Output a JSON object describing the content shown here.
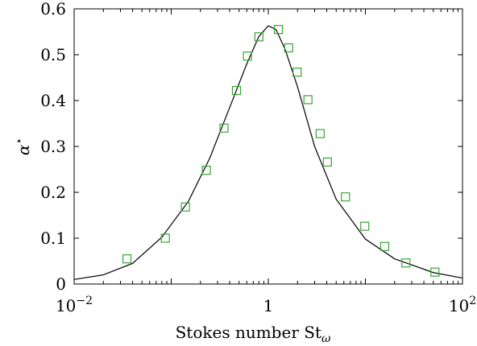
{
  "chart_data": {
    "type": "scatter",
    "xscale": "log",
    "xlim": [
      0.01,
      100
    ],
    "ylim": [
      0,
      0.6
    ],
    "xlabel": "Stokes number St",
    "xlabel_sub": "ω",
    "ylabel": "α",
    "ylabel_sup": "⋆",
    "grid": false,
    "x_ticks": [
      {
        "value": 0.01,
        "base": "10",
        "exp": "−2"
      },
      {
        "value": 1,
        "base": "1",
        "exp": ""
      },
      {
        "value": 100,
        "base": "10",
        "exp": "2"
      }
    ],
    "y_ticks": [
      0,
      0.1,
      0.2,
      0.3,
      0.4,
      0.5,
      0.6
    ],
    "y_tick_labels": [
      "0",
      "0.1",
      "0.2",
      "0.3",
      "0.4",
      "0.5",
      "0.6"
    ],
    "series": [
      {
        "kind": "line",
        "color": "#000000",
        "x": [
          0.01,
          0.02,
          0.04,
          0.08,
          0.15,
          0.25,
          0.4,
          0.6,
          0.8,
          1.0,
          1.2,
          1.5,
          2.0,
          3.0,
          5.0,
          10,
          20,
          50,
          100
        ],
        "y": [
          0.01,
          0.02,
          0.045,
          0.102,
          0.18,
          0.275,
          0.385,
          0.48,
          0.54,
          0.563,
          0.555,
          0.51,
          0.43,
          0.3,
          0.185,
          0.098,
          0.055,
          0.025,
          0.013
        ]
      },
      {
        "kind": "markers",
        "marker": "square",
        "color": "#3aa335",
        "x": [
          0.035,
          0.087,
          0.14,
          0.23,
          0.35,
          0.47,
          0.61,
          0.8,
          1.27,
          1.62,
          1.98,
          2.56,
          3.42,
          4.06,
          6.24,
          9.85,
          15.8,
          26.1,
          52.0
        ],
        "y": [
          0.055,
          0.1,
          0.168,
          0.248,
          0.34,
          0.422,
          0.497,
          0.539,
          0.555,
          0.515,
          0.462,
          0.402,
          0.328,
          0.266,
          0.19,
          0.126,
          0.082,
          0.046,
          0.026
        ]
      }
    ]
  }
}
